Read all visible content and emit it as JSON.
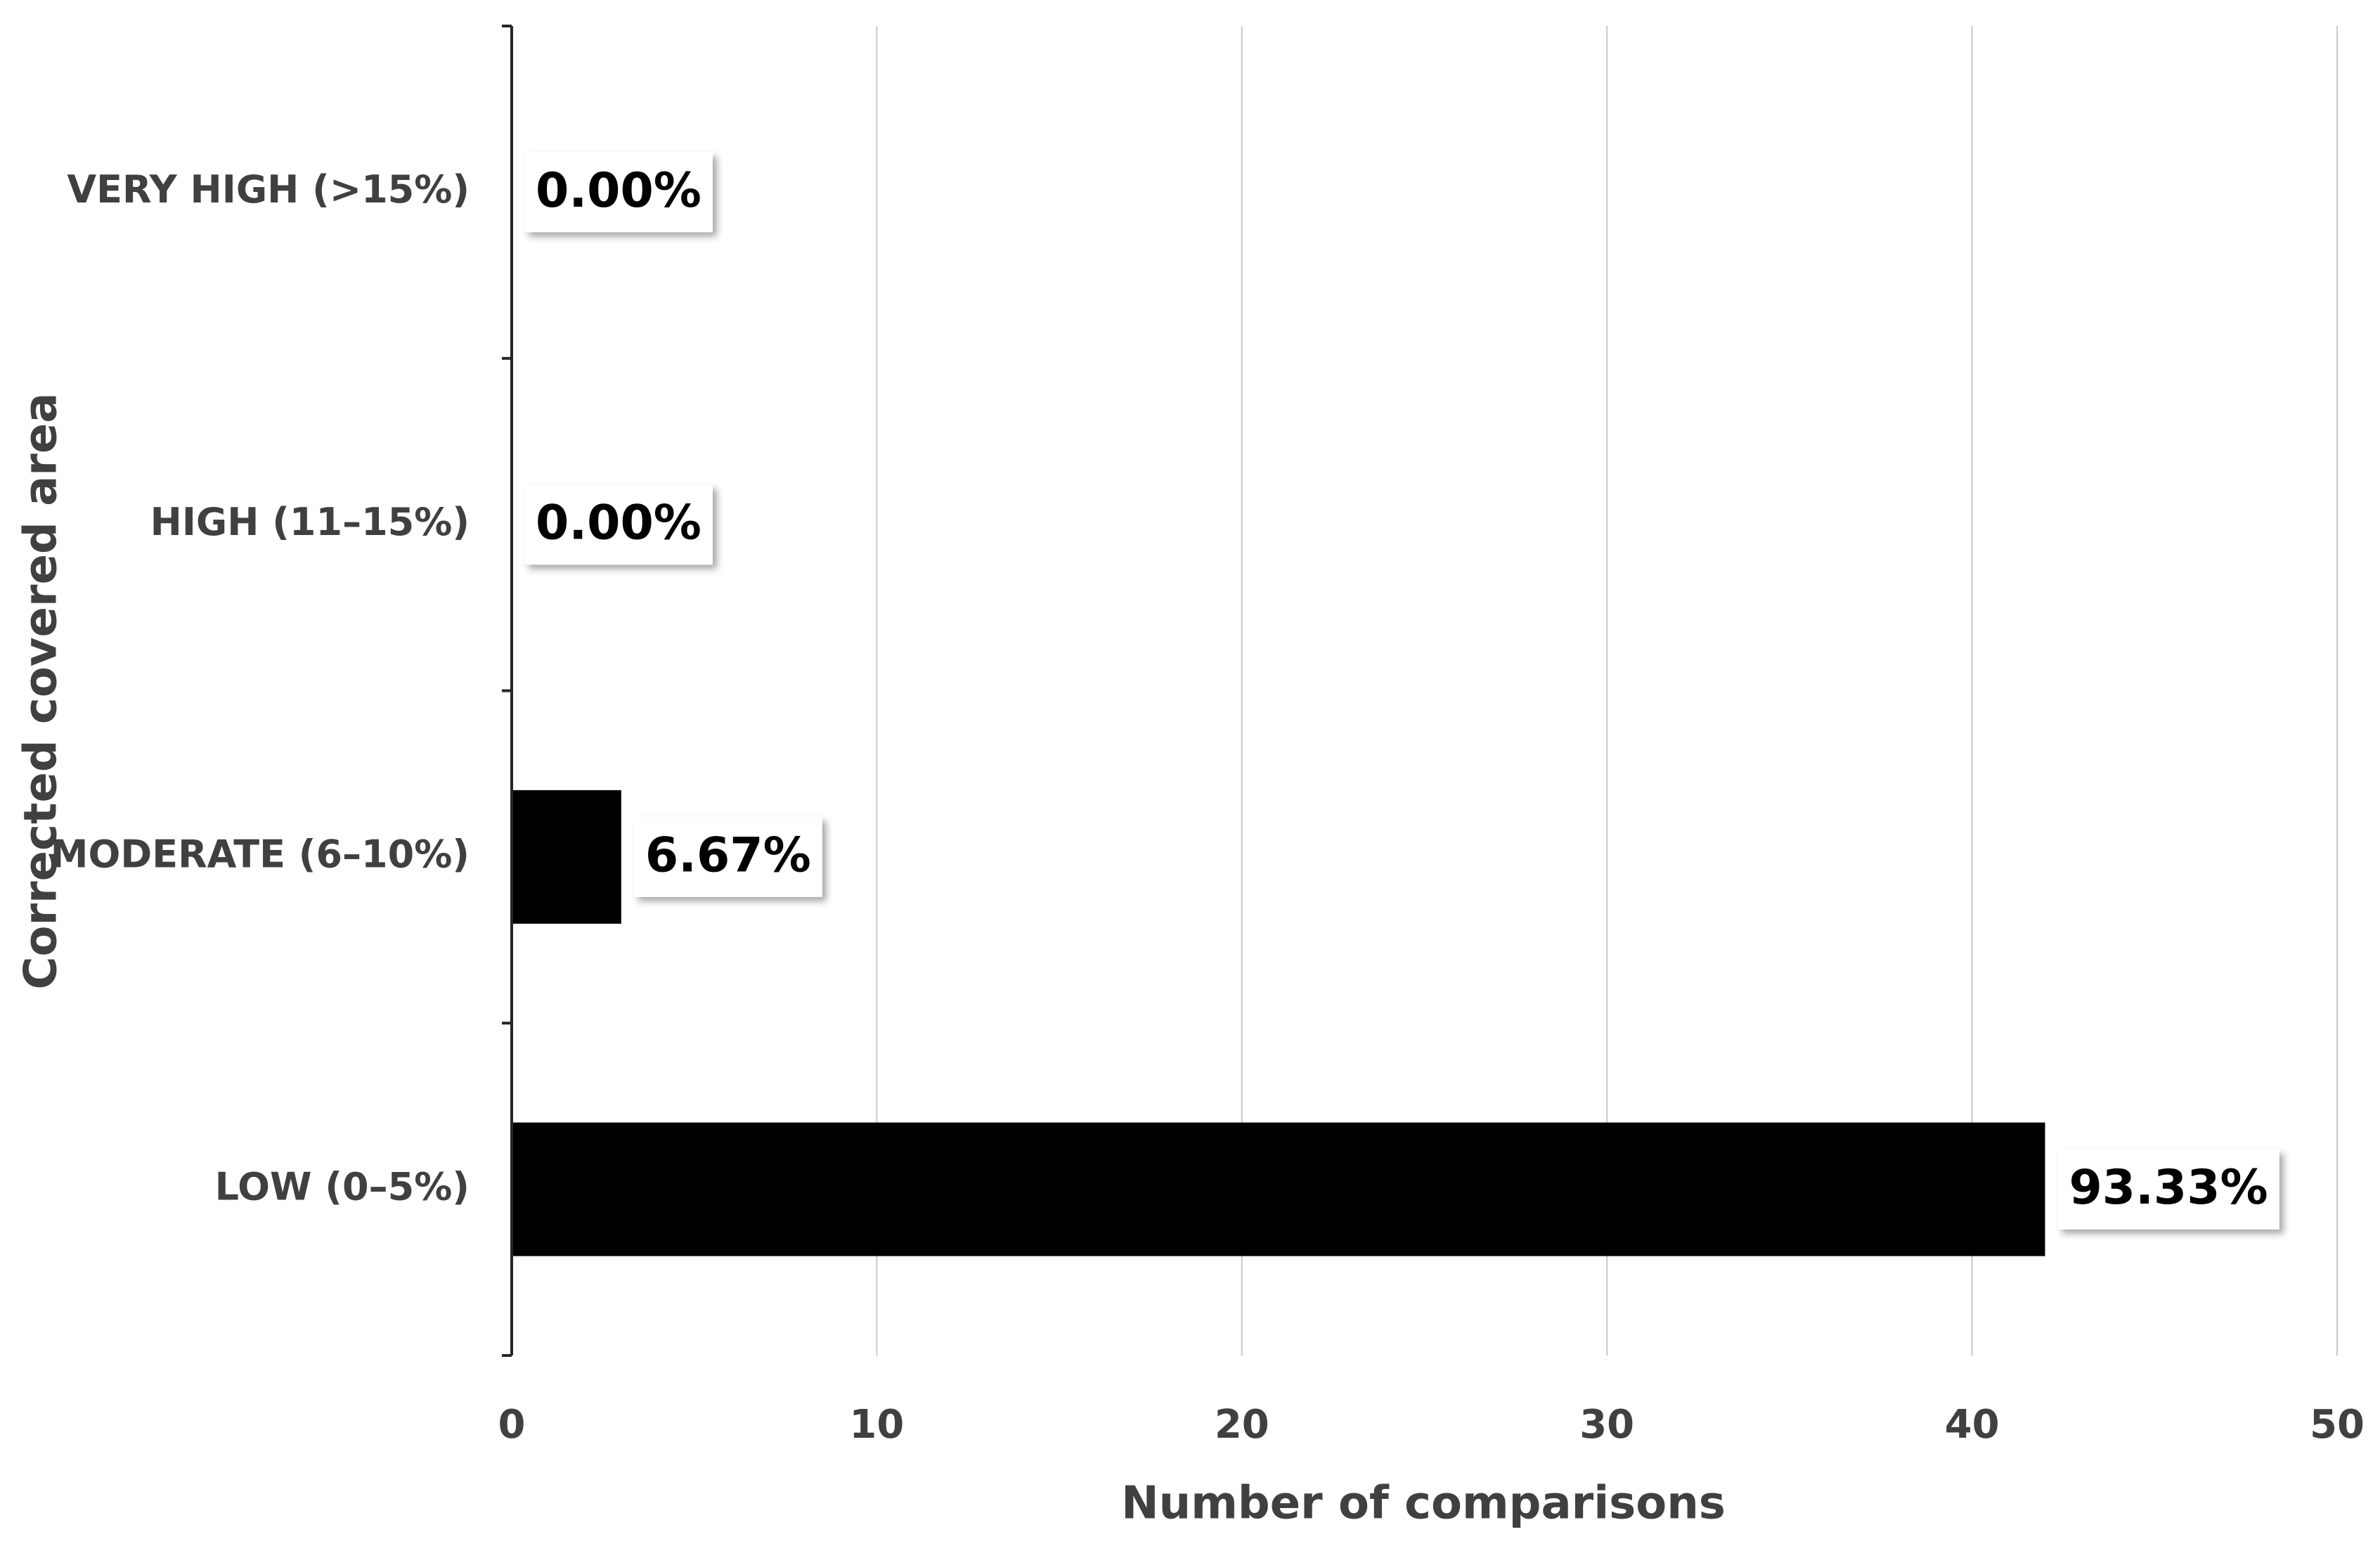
{
  "chart_data": {
    "type": "bar",
    "orientation": "horizontal",
    "x_label": "Number of comparisons",
    "y_label": "Corrected covered area",
    "categories": [
      "LOW (0–5%)",
      "MODERATE (6–10%)",
      "HIGH (11–15%)",
      "VERY HIGH (>15%)"
    ],
    "values": [
      42,
      3,
      0,
      0
    ],
    "data_labels": [
      "93.33%",
      "6.67%",
      "0.00%",
      "0.00%"
    ],
    "color": "#000000",
    "xlim": [
      0,
      50
    ],
    "xticks": [
      0,
      10,
      20,
      30,
      40,
      50
    ],
    "grid": true
  }
}
